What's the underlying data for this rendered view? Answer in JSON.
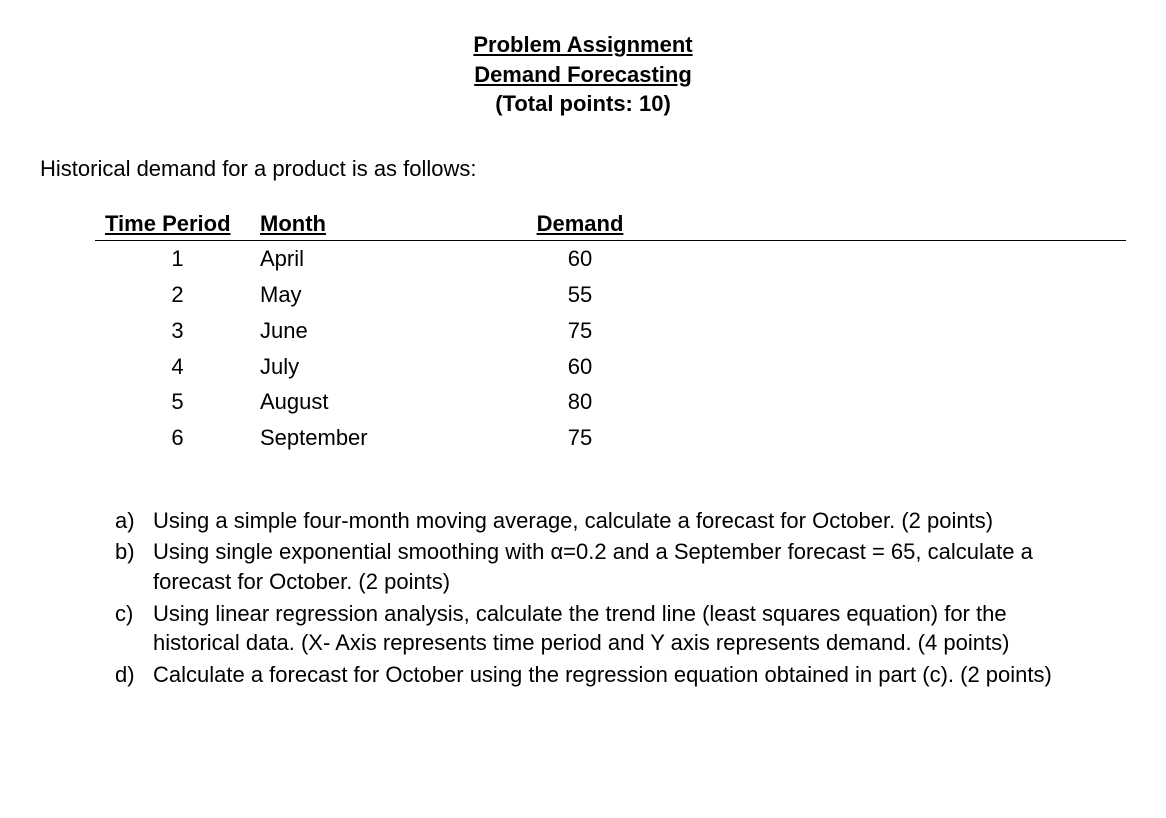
{
  "header": {
    "line1": "Problem Assignment",
    "line2": "Demand Forecasting",
    "line3": "(Total points: 10)"
  },
  "intro": "Historical demand for a product is as follows:",
  "table": {
    "headers": {
      "period": "Time Period",
      "month": "Month",
      "demand": "Demand"
    },
    "rows": [
      {
        "period": "1",
        "month": "April",
        "demand": "60"
      },
      {
        "period": "2",
        "month": "May",
        "demand": "55"
      },
      {
        "period": "3",
        "month": "June",
        "demand": "75"
      },
      {
        "period": "4",
        "month": "July",
        "demand": "60"
      },
      {
        "period": "5",
        "month": "August",
        "demand": "80"
      },
      {
        "period": "6",
        "month": "September",
        "demand": "75"
      }
    ]
  },
  "questions": [
    {
      "label": "a)",
      "text": "Using a simple four-month moving average, calculate a forecast for October. (2 points)"
    },
    {
      "label": "b)",
      "text": "Using single exponential smoothing with α=0.2 and a September forecast = 65, calculate a forecast for October. (2 points)"
    },
    {
      "label": "c)",
      "text": "Using linear regression analysis, calculate the trend line (least squares equation) for the historical data. (X- Axis represents time period and Y axis represents demand. (4 points)"
    },
    {
      "label": "d)",
      "text": "Calculate a forecast for October using the regression equation obtained in part (c). (2 points)"
    }
  ]
}
